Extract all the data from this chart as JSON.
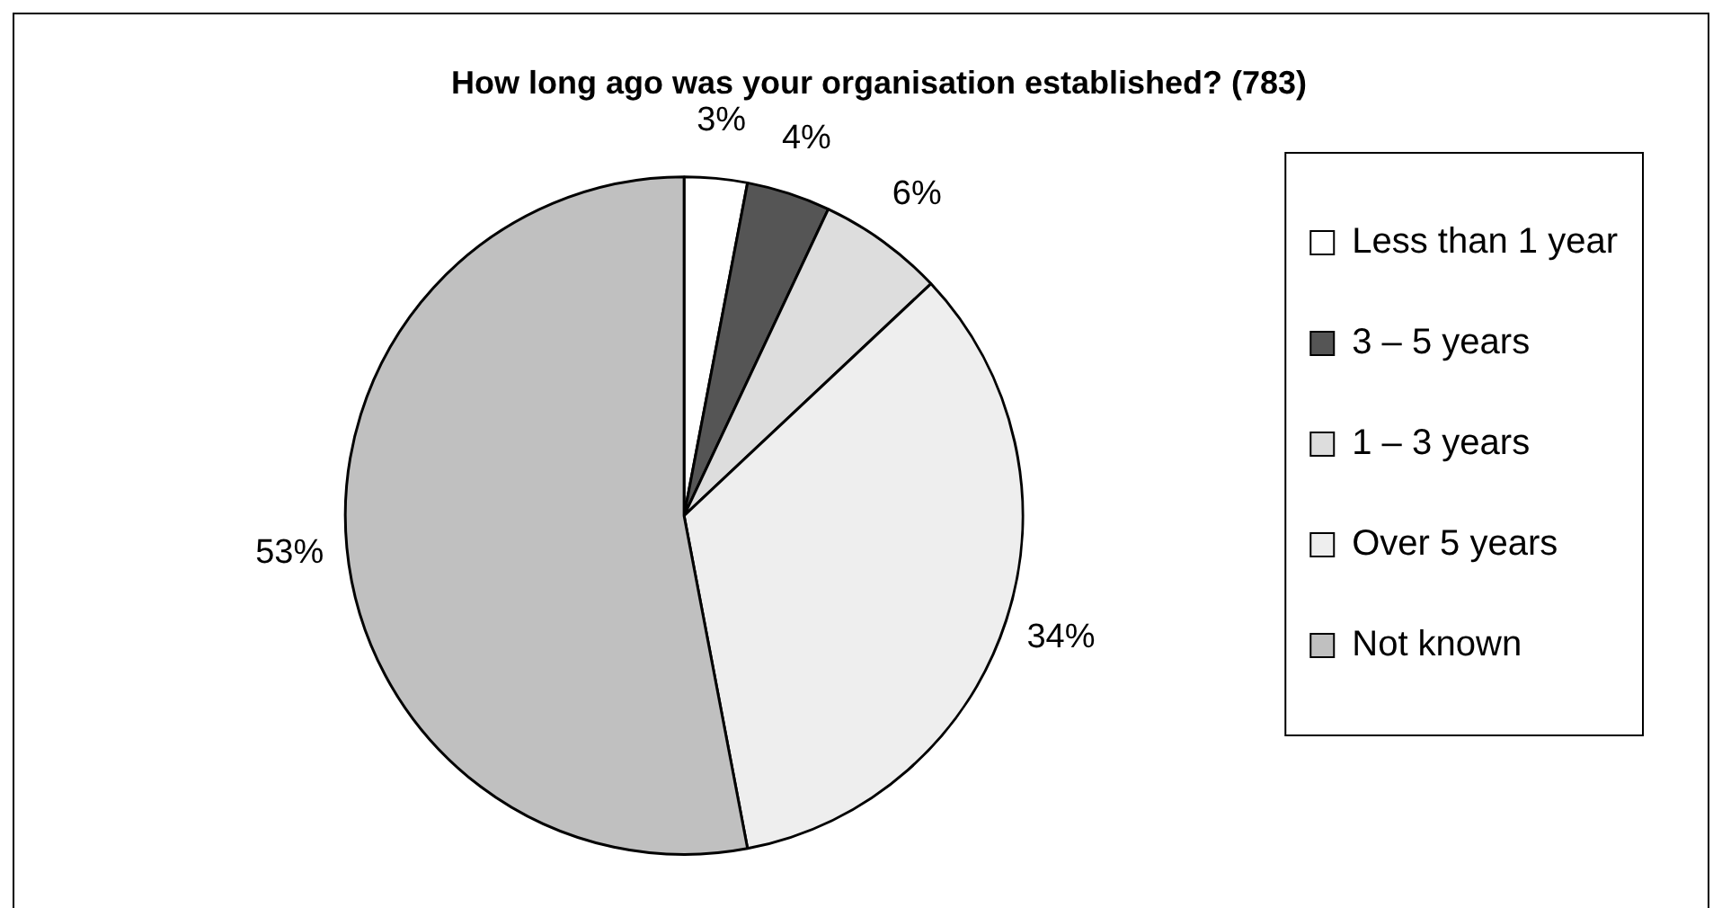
{
  "chart_data": {
    "type": "pie",
    "title": "How long ago was your organisation established? (783)",
    "categories": [
      "Less than 1 year",
      "3 – 5 years",
      "1 – 3 years",
      "Over 5 years",
      "Not known"
    ],
    "values": [
      3,
      4,
      6,
      34,
      53
    ],
    "value_labels": [
      "3%",
      "4%",
      "6%",
      "34%",
      "53%"
    ],
    "colors": [
      "#ffffff",
      "#555555",
      "#dddddd",
      "#eeeeee",
      "#c0c0c0"
    ],
    "legend": "right"
  }
}
